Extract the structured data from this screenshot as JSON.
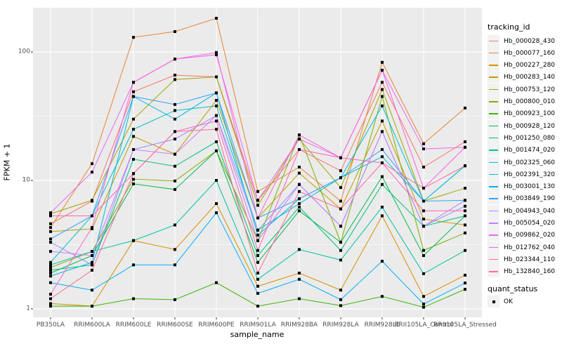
{
  "chart_data": {
    "type": "line",
    "title": "",
    "xlabel": "sample_name",
    "ylabel": "FPKM + 1",
    "y_scale": "log10",
    "y_ticks": [
      1,
      10,
      100
    ],
    "y_minor_ticks": [
      3.1623,
      31.623
    ],
    "grid": "on",
    "legend_position": "right",
    "panel_background": "#EBEBEB",
    "grid_color": "#FFFFFF",
    "point_marker": "black-square",
    "categories": [
      "PB350LA",
      "RRIM600LA",
      "RRIM600LE",
      "RRIM600SE",
      "RRIM600PE",
      "RRIM901LA",
      "RRIM928BA",
      "RRIM928LA",
      "RRIM928LE",
      "RRII105LA_Control",
      "RRII105LA_Stressed"
    ],
    "series": [
      {
        "name": "Hb_000028_430",
        "color": "#F8766D",
        "values": [
          4.6,
          6.9,
          49,
          66,
          64,
          7.0,
          17.4,
          11.9,
          58,
          12.7,
          20
        ]
      },
      {
        "name": "Hb_000077_160",
        "color": "#EA8331",
        "values": [
          4.3,
          13.5,
          130,
          144,
          183,
          8.2,
          12.7,
          6.9,
          83,
          19.3,
          36.6
        ]
      },
      {
        "name": "Hb_000227_280",
        "color": "#D89000",
        "values": [
          1.1,
          1.05,
          3.4,
          2.9,
          6.6,
          1.5,
          1.9,
          1.4,
          5.3,
          1.25,
          1.83
        ]
      },
      {
        "name": "Hb_000283_140",
        "color": "#C09B00",
        "values": [
          4.0,
          4.2,
          22,
          16,
          42,
          5.1,
          11.4,
          6.0,
          29,
          5.0,
          4.5
        ]
      },
      {
        "name": "Hb_000753_120",
        "color": "#A3A500",
        "values": [
          5.5,
          7.0,
          30,
          61,
          64,
          6.4,
          21,
          8.8,
          51,
          6.9,
          8.7
        ]
      },
      {
        "name": "Hb_000800_010",
        "color": "#7CAE00",
        "values": [
          2.1,
          2.8,
          10.2,
          9.9,
          17,
          3.4,
          22.6,
          3.3,
          45,
          2.85,
          3.9
        ]
      },
      {
        "name": "Hb_000923_100",
        "color": "#39B600",
        "values": [
          1.05,
          1.05,
          1.2,
          1.18,
          1.6,
          1.05,
          1.2,
          1.06,
          1.25,
          1.03,
          1.42
        ]
      },
      {
        "name": "Hb_000928_120",
        "color": "#00BB4E",
        "values": [
          1.9,
          2.6,
          9.4,
          8.5,
          17,
          2.3,
          5.8,
          3.3,
          10.7,
          2.6,
          5.3
        ]
      },
      {
        "name": "Hb_001250_080",
        "color": "#00BF7D",
        "values": [
          2.0,
          2.2,
          14.6,
          12.9,
          20,
          2.6,
          6.2,
          2.85,
          9.3,
          4.4,
          5.3
        ]
      },
      {
        "name": "Hb_001474_020",
        "color": "#00C1A3",
        "values": [
          2.2,
          2.8,
          3.4,
          4.5,
          10,
          1.7,
          2.9,
          2.4,
          6.2,
          1.88,
          2.85
        ]
      },
      {
        "name": "Hb_002325_060",
        "color": "#00BFC4",
        "values": [
          2.3,
          5.3,
          25,
          35,
          38,
          4.1,
          6.6,
          10.5,
          15.3,
          6.9,
          13
        ]
      },
      {
        "name": "Hb_002391_320",
        "color": "#00BAE0",
        "values": [
          1.8,
          2.3,
          45,
          30,
          48,
          3.75,
          7.2,
          10.5,
          38,
          6.9,
          13
        ]
      },
      {
        "name": "Hb_003001_130",
        "color": "#00B0F6",
        "values": [
          1.6,
          1.4,
          2.2,
          2.2,
          5.6,
          1.32,
          1.7,
          1.18,
          2.35,
          1.09,
          1.59
        ]
      },
      {
        "name": "Hb_003849_190",
        "color": "#35A2FF",
        "values": [
          3.5,
          5.3,
          45,
          39,
          48,
          5.1,
          7.2,
          10.5,
          17.4,
          6.9,
          7.0
        ]
      },
      {
        "name": "Hb_004943_040",
        "color": "#9590FF",
        "values": [
          3.3,
          2.2,
          17.4,
          21,
          32,
          4.1,
          9.3,
          4.4,
          24,
          4.4,
          6.3
        ]
      },
      {
        "name": "Hb_005054_020",
        "color": "#C77CFF",
        "values": [
          2.8,
          2.6,
          17.4,
          16,
          32,
          3.4,
          9.3,
          4.4,
          24,
          4.4,
          7.0
        ]
      },
      {
        "name": "Hb_009862_020",
        "color": "#E76BF3",
        "values": [
          5.6,
          11.6,
          58,
          88,
          95,
          7.0,
          21,
          15,
          72,
          17.6,
          18.1
        ]
      },
      {
        "name": "Hb_012762_040",
        "color": "#FA62DB",
        "values": [
          1.3,
          4.3,
          58,
          88,
          99,
          5.1,
          22.6,
          15,
          72,
          8.7,
          18.1
        ]
      },
      {
        "name": "Hb_023344_110",
        "color": "#FF62BC",
        "values": [
          5.3,
          5.3,
          11.3,
          24,
          29,
          2.85,
          17.4,
          15,
          13.7,
          5.8,
          5.8
        ]
      },
      {
        "name": "Hb_132840_160",
        "color": "#FF6A98",
        "values": [
          1.2,
          2.0,
          11.3,
          24,
          25,
          1.9,
          8.2,
          6.0,
          13.7,
          8.7,
          13
        ]
      }
    ]
  },
  "legend": {
    "tracking_title": "tracking_id",
    "quant_title": "quant_status",
    "quant_items": [
      {
        "label": "OK",
        "marker": "black-square"
      }
    ]
  }
}
